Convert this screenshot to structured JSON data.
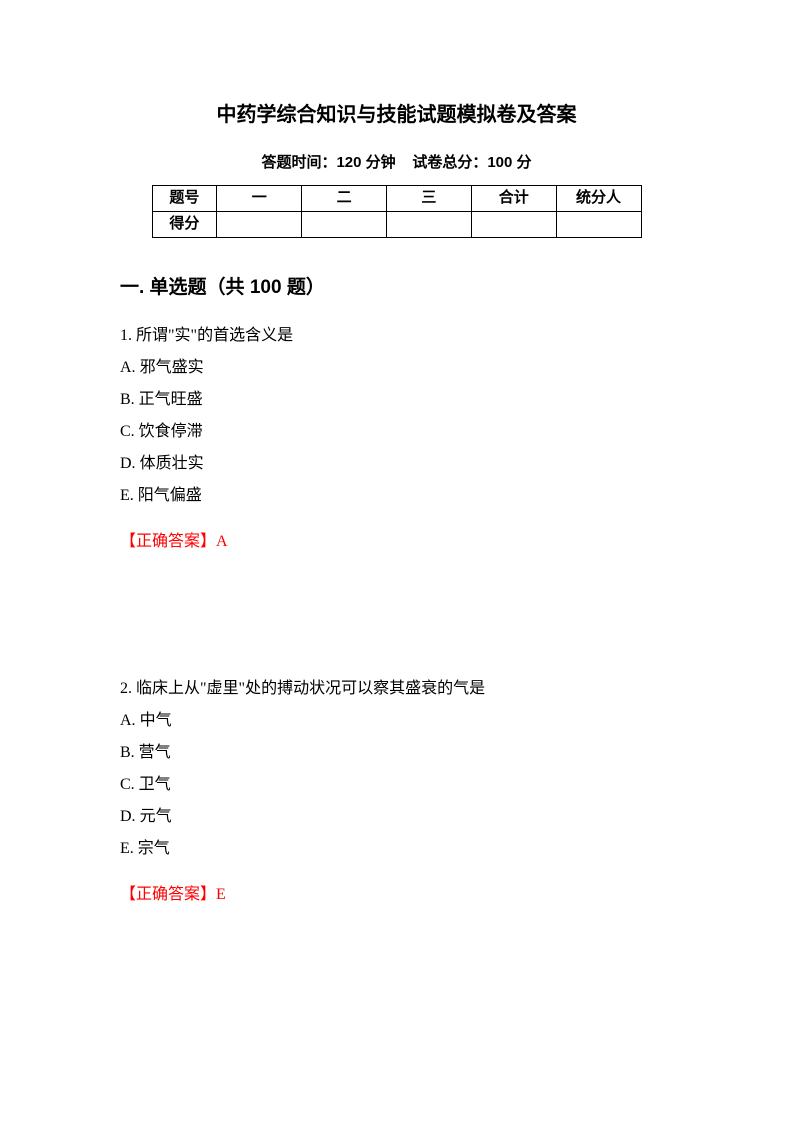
{
  "title": "中药学综合知识与技能试题模拟卷及答案",
  "subtitle_left": "答题时间：120 分钟",
  "subtitle_right": "试卷总分：100 分",
  "table": {
    "row1": {
      "c0": "题号",
      "c1": "一",
      "c2": "二",
      "c3": "三",
      "c4": "合计",
      "c5": "统分人"
    },
    "row2": {
      "c0": "得分",
      "c1": "",
      "c2": "",
      "c3": "",
      "c4": "",
      "c5": ""
    }
  },
  "section_heading": "一. 单选题（共 100 题）",
  "questions": [
    {
      "number": "1",
      "stem": "所谓\"实\"的首选含义是",
      "options": {
        "A": "邪气盛实",
        "B": "正气旺盛",
        "C": "饮食停滞",
        "D": "体质壮实",
        "E": "阳气偏盛"
      },
      "answer_label": "【正确答案】",
      "answer_value": "A"
    },
    {
      "number": "2",
      "stem": "临床上从\"虚里\"处的搏动状况可以察其盛衰的气是",
      "options": {
        "A": "中气",
        "B": "营气",
        "C": "卫气",
        "D": "元气",
        "E": "宗气"
      },
      "answer_label": "【正确答案】",
      "answer_value": "E"
    }
  ],
  "colors": {
    "text": "#000000",
    "answer": "#ff0000",
    "background": "#ffffff",
    "table_border": "#000000"
  }
}
